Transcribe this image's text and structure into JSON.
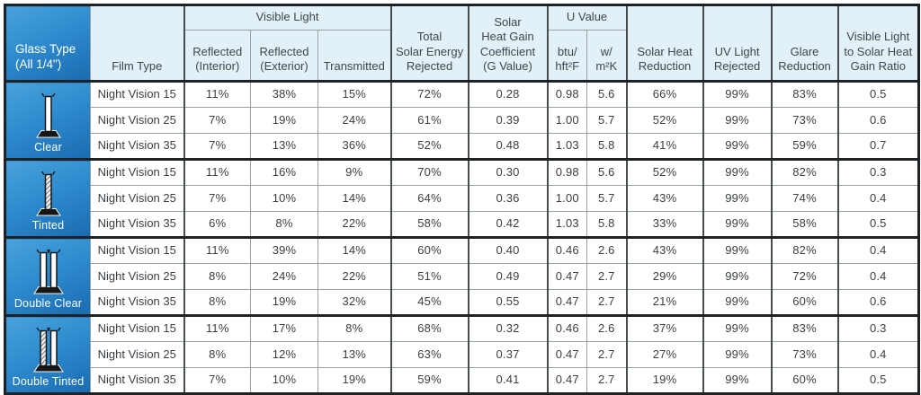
{
  "table": {
    "headers": {
      "glass_type": "Glass Type\n(All 1/4\")",
      "film_type": "Film Type",
      "visible_light": "Visible Light",
      "reflected_interior": "Reflected\n(Interior)",
      "reflected_exterior": "Reflected\n(Exterior)",
      "transmitted": "Transmitted",
      "total_solar": "Total\nSolar Energy\nRejected",
      "shgc": "Solar\nHeat Gain\nCoefficient\n(G Value)",
      "u_value": "U Value",
      "u_btu": "btu/\nhft²F",
      "u_w": "w/\nm²K",
      "solar_heat_reduction": "Solar Heat\nReduction",
      "uv_rejected": "UV Light\nRejected",
      "glare_reduction": "Glare\nReduction",
      "vl_shg_ratio": "Visible Light\nto Solar Heat\nGain Ratio"
    },
    "glass_groups": [
      {
        "label": "Clear",
        "icon": "glass-clear-icon",
        "panes": [
          "clear"
        ]
      },
      {
        "label": "Tinted",
        "icon": "glass-tinted-icon",
        "panes": [
          "tinted"
        ]
      },
      {
        "label": "Double Clear",
        "icon": "glass-double-clear-icon",
        "panes": [
          "clear",
          "clear"
        ]
      },
      {
        "label": "Double Tinted",
        "icon": "glass-double-tinted-icon",
        "panes": [
          "tinted",
          "clear"
        ]
      }
    ],
    "colors": {
      "header_bg": "#e2f0f8",
      "glass_cell_gradient_start": "#49a2dd",
      "glass_cell_gradient_end": "#1a6bb0",
      "border_dark": "#1f2224",
      "border_light": "#9aa1a6",
      "text": "#3a3f43"
    }
  },
  "chart_data": {
    "type": "table",
    "title": "",
    "columns": [
      "Glass Type (All 1/4\")",
      "Film Type",
      "Visible Light Reflected (Interior)",
      "Visible Light Reflected (Exterior)",
      "Visible Light Transmitted",
      "Total Solar Energy Rejected",
      "Solar Heat Gain Coefficient (G Value)",
      "U Value btu/hft²F",
      "U Value w/m²K",
      "Solar Heat Reduction",
      "UV Light Rejected",
      "Glare Reduction",
      "Visible Light to Solar Heat Gain Ratio"
    ],
    "rows": [
      [
        "Clear",
        "Night Vision 15",
        "11%",
        "38%",
        "15%",
        "72%",
        "0.28",
        "0.98",
        "5.6",
        "66%",
        "99%",
        "83%",
        "0.5"
      ],
      [
        "Clear",
        "Night Vision 25",
        "7%",
        "19%",
        "24%",
        "61%",
        "0.39",
        "1.00",
        "5.7",
        "52%",
        "99%",
        "73%",
        "0.6"
      ],
      [
        "Clear",
        "Night Vision 35",
        "7%",
        "13%",
        "36%",
        "52%",
        "0.48",
        "1.03",
        "5.8",
        "41%",
        "99%",
        "59%",
        "0.7"
      ],
      [
        "Tinted",
        "Night Vision 15",
        "11%",
        "16%",
        "9%",
        "70%",
        "0.30",
        "0.98",
        "5.6",
        "52%",
        "99%",
        "82%",
        "0.3"
      ],
      [
        "Tinted",
        "Night Vision 25",
        "7%",
        "10%",
        "14%",
        "64%",
        "0.36",
        "1.00",
        "5.7",
        "43%",
        "99%",
        "74%",
        "0.4"
      ],
      [
        "Tinted",
        "Night Vision 35",
        "6%",
        "8%",
        "22%",
        "58%",
        "0.42",
        "1.03",
        "5.8",
        "33%",
        "99%",
        "58%",
        "0.5"
      ],
      [
        "Double Clear",
        "Night Vision 15",
        "11%",
        "39%",
        "14%",
        "60%",
        "0.40",
        "0.46",
        "2.6",
        "43%",
        "99%",
        "82%",
        "0.4"
      ],
      [
        "Double Clear",
        "Night Vision 25",
        "8%",
        "24%",
        "22%",
        "51%",
        "0.49",
        "0.47",
        "2.7",
        "29%",
        "99%",
        "72%",
        "0.4"
      ],
      [
        "Double Clear",
        "Night Vision 35",
        "8%",
        "19%",
        "32%",
        "45%",
        "0.55",
        "0.47",
        "2.7",
        "21%",
        "99%",
        "60%",
        "0.6"
      ],
      [
        "Double Tinted",
        "Night Vision 15",
        "11%",
        "17%",
        "8%",
        "68%",
        "0.32",
        "0.46",
        "2.6",
        "37%",
        "99%",
        "83%",
        "0.3"
      ],
      [
        "Double Tinted",
        "Night Vision 25",
        "8%",
        "12%",
        "13%",
        "63%",
        "0.37",
        "0.47",
        "2.7",
        "27%",
        "99%",
        "73%",
        "0.4"
      ],
      [
        "Double Tinted",
        "Night Vision 35",
        "7%",
        "10%",
        "19%",
        "59%",
        "0.41",
        "0.47",
        "2.7",
        "19%",
        "99%",
        "60%",
        "0.5"
      ]
    ]
  }
}
